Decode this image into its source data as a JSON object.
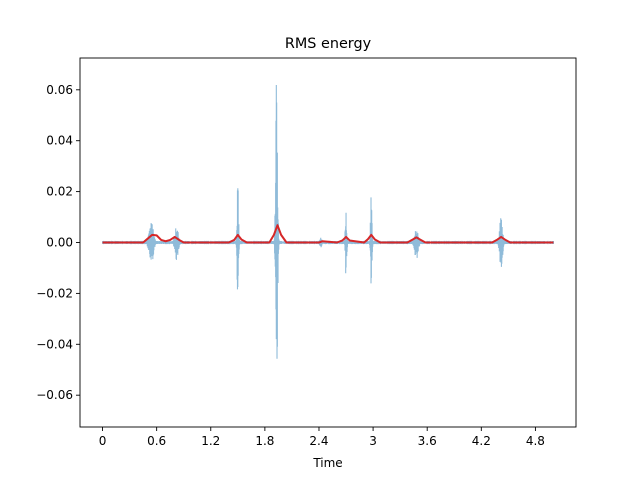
{
  "chart_data": {
    "type": "line",
    "title": "RMS energy",
    "xlabel": "Time",
    "ylabel": "",
    "xlim": [
      -0.25,
      5.25
    ],
    "ylim": [
      -0.0725,
      0.0725
    ],
    "xticks": [
      0,
      0.6,
      1.2,
      1.8,
      2.4,
      3.0,
      3.6,
      4.2,
      4.8
    ],
    "xtick_labels": [
      "0",
      "0.6",
      "1.2",
      "1.8",
      "2.4",
      "3",
      "3.6",
      "4.2",
      "4.8"
    ],
    "yticks": [
      -0.06,
      -0.04,
      -0.02,
      0.0,
      0.02,
      0.04,
      0.06
    ],
    "ytick_labels": [
      "−0.06",
      "−0.04",
      "−0.02",
      "0.00",
      "0.02",
      "0.04",
      "0.06"
    ],
    "grid": false,
    "legend": "none",
    "series": [
      {
        "kind": "waveform",
        "color": "#1f77b4",
        "alpha": 0.5,
        "bursts": [
          {
            "t": 0.54,
            "peak_pos": 0.008,
            "peak_neg": -0.009,
            "duration": 0.12
          },
          {
            "t": 0.82,
            "peak_pos": 0.007,
            "peak_neg": -0.007,
            "duration": 0.1
          },
          {
            "t": 1.5,
            "peak_pos": 0.025,
            "peak_neg": -0.025,
            "duration": 0.04
          },
          {
            "t": 1.93,
            "peak_pos": 0.066,
            "peak_neg": -0.066,
            "duration": 0.05
          },
          {
            "t": 2.42,
            "peak_pos": 0.002,
            "peak_neg": -0.002,
            "duration": 0.06
          },
          {
            "t": 2.7,
            "peak_pos": 0.014,
            "peak_neg": -0.014,
            "duration": 0.04
          },
          {
            "t": 2.98,
            "peak_pos": 0.021,
            "peak_neg": -0.022,
            "duration": 0.04
          },
          {
            "t": 3.48,
            "peak_pos": 0.006,
            "peak_neg": -0.007,
            "duration": 0.1
          },
          {
            "t": 4.42,
            "peak_pos": 0.011,
            "peak_neg": -0.011,
            "duration": 0.08
          }
        ]
      },
      {
        "kind": "rms",
        "color": "#d62728",
        "x": [
          0.0,
          0.45,
          0.5,
          0.55,
          0.6,
          0.65,
          0.7,
          0.75,
          0.8,
          0.85,
          0.9,
          1.4,
          1.46,
          1.5,
          1.54,
          1.6,
          1.85,
          1.9,
          1.94,
          1.98,
          2.04,
          2.4,
          2.44,
          2.6,
          2.66,
          2.7,
          2.74,
          2.9,
          2.94,
          2.98,
          3.02,
          3.08,
          3.38,
          3.44,
          3.48,
          3.52,
          3.58,
          4.32,
          4.38,
          4.42,
          4.46,
          4.52,
          5.0
        ],
        "y": [
          0.0,
          0.0,
          0.0015,
          0.003,
          0.0028,
          0.001,
          0.0005,
          0.001,
          0.0022,
          0.001,
          0.0,
          0.0,
          0.001,
          0.003,
          0.0012,
          0.0,
          0.0,
          0.003,
          0.0068,
          0.003,
          0.0,
          0.0,
          0.0005,
          0.0,
          0.0008,
          0.0022,
          0.0008,
          0.0,
          0.0012,
          0.003,
          0.0012,
          0.0,
          0.0,
          0.0012,
          0.002,
          0.0012,
          0.0,
          0.0,
          0.0012,
          0.0022,
          0.0012,
          0.0,
          0.0
        ]
      }
    ]
  }
}
